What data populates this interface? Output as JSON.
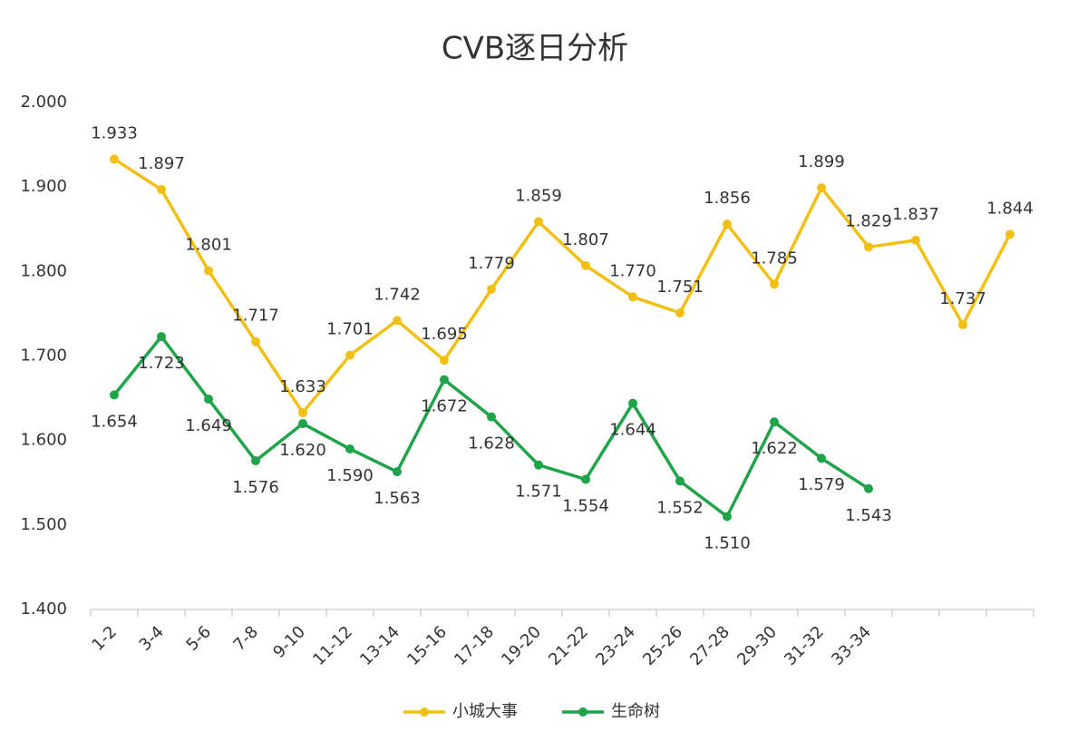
{
  "chart_data": {
    "type": "line",
    "title": "CVB逐日分析",
    "categories": [
      "1-2",
      "3-4",
      "5-6",
      "7-8",
      "9-10",
      "11-12",
      "13-14",
      "15-16",
      "17-18",
      "19-20",
      "21-22",
      "23-24",
      "25-26",
      "27-28",
      "29-30",
      "31-32",
      "33-34",
      null,
      null,
      null
    ],
    "series": [
      {
        "name": "小城大事",
        "color": "#f2c014",
        "values": [
          1.933,
          1.897,
          1.801,
          1.717,
          1.633,
          1.701,
          1.742,
          1.695,
          1.779,
          1.859,
          1.807,
          1.77,
          1.751,
          1.856,
          1.785,
          1.899,
          1.829,
          1.837,
          1.737,
          1.844
        ],
        "value_labels": [
          "1.933",
          "1.897",
          "1.801",
          "1.717",
          "1.633",
          "1.701",
          "1.742",
          "1.695",
          "1.779",
          "1.859",
          "1.807",
          "1.770",
          "1.751",
          "1.856",
          "1.785",
          "1.899",
          "1.829",
          "1.837",
          "1.737",
          "1.844"
        ]
      },
      {
        "name": "生命树",
        "color": "#1fa44a",
        "values": [
          1.654,
          1.723,
          1.649,
          1.576,
          1.62,
          1.59,
          1.563,
          1.672,
          1.628,
          1.571,
          1.554,
          1.644,
          1.552,
          1.51,
          1.622,
          1.579,
          1.543,
          null,
          null,
          null
        ],
        "value_labels": [
          "1.654",
          "1.723",
          "1.649",
          "1.576",
          "1.620",
          "1.590",
          "1.563",
          "1.672",
          "1.628",
          "1.571",
          "1.554",
          "1.644",
          "1.552",
          "1.510",
          "1.622",
          "1.579",
          "1.543",
          null,
          null,
          null
        ]
      }
    ],
    "ylim": [
      1.4,
      2.0
    ],
    "yticks": [
      {
        "value": 1.4,
        "label": "1.400"
      },
      {
        "value": 1.5,
        "label": "1.500"
      },
      {
        "value": 1.6,
        "label": "1.600"
      },
      {
        "value": 1.7,
        "label": "1.700"
      },
      {
        "value": 1.8,
        "label": "1.800"
      },
      {
        "value": 1.9,
        "label": "1.900"
      },
      {
        "value": 2.0,
        "label": "2.000"
      }
    ],
    "grid": false,
    "legend": "bottom"
  }
}
